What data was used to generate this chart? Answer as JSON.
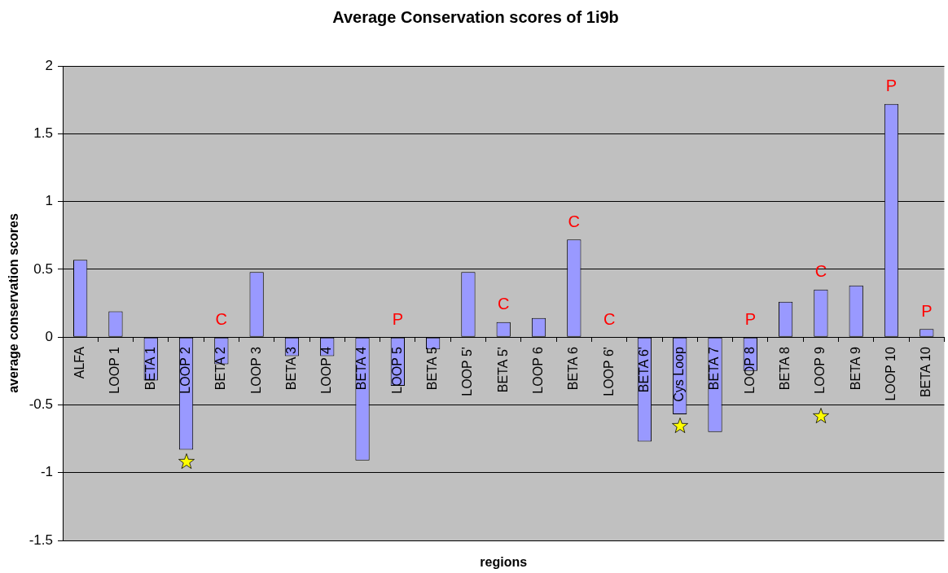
{
  "chart_data": {
    "type": "bar",
    "title": "Average Conservation scores of 1i9b",
    "xlabel": "regions",
    "ylabel": "average conservation scores",
    "categories": [
      "ALFA",
      "LOOP 1",
      "BETA 1",
      "LOOP 2",
      "BETA 2",
      "LOOP 3",
      "BETA 3",
      "LOOP 4",
      "BETA 4",
      "LOOP 5",
      "BETA 5",
      "LOOP 5'",
      "BETA 5'",
      "LOOP 6",
      "BETA 6",
      "LOOP 6'",
      "BETA 6'",
      "Cys Loop",
      "BETA 7",
      "LOOP 8",
      "BETA 8",
      "LOOP 9",
      "BETA 9",
      "LOOP 10",
      "BETA 10"
    ],
    "values": [
      0.57,
      0.19,
      -0.32,
      -0.83,
      -0.2,
      0.48,
      -0.14,
      -0.14,
      -0.91,
      -0.36,
      -0.09,
      0.48,
      0.11,
      0.14,
      0.72,
      null,
      -0.77,
      -0.57,
      -0.7,
      -0.25,
      0.26,
      0.35,
      0.38,
      1.72,
      0.06
    ],
    "value_labels": [
      null,
      null,
      null,
      null,
      "C",
      null,
      null,
      null,
      null,
      "P",
      null,
      null,
      "C",
      null,
      "C",
      "C",
      null,
      null,
      null,
      "P",
      null,
      "C",
      null,
      "P",
      "P"
    ],
    "color": "#9999ff",
    "ylim": [
      -1.5,
      2
    ],
    "yticks": [
      -1.5,
      -1,
      -0.5,
      0,
      0.5,
      1,
      1.5,
      2
    ],
    "grid": "y"
  }
}
